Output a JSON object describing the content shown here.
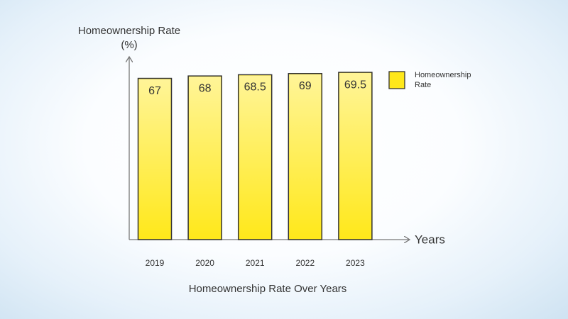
{
  "chart_data": {
    "type": "bar",
    "title": "Homeownership Rate Over Years",
    "y_label": "Homeownership Rate (%)",
    "x_label": "Years",
    "categories": [
      "2019",
      "2020",
      "2021",
      "2022",
      "2023"
    ],
    "series": [
      {
        "name": "Homeownership Rate",
        "color": "#ffe81a",
        "values": [
          67,
          68,
          68.5,
          69,
          69.5
        ]
      }
    ],
    "ylim": [
      0,
      76
    ],
    "legend": "right"
  }
}
